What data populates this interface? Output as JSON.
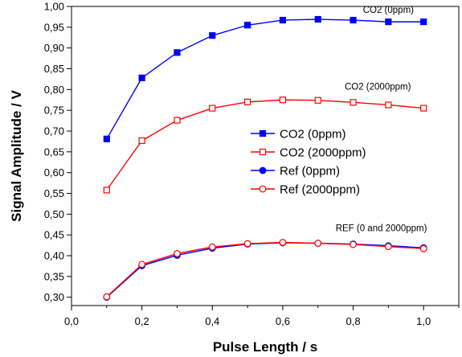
{
  "chart_data": {
    "type": "line",
    "xlabel": "Pulse Length / s",
    "ylabel": "Signal Amplitude / V",
    "xlim": [
      0.0,
      1.1
    ],
    "ylim": [
      0.28,
      1.0
    ],
    "xticks": [
      "0,0",
      "0,2",
      "0,4",
      "0,6",
      "0,8",
      "1,0"
    ],
    "xtick_values": [
      0.0,
      0.2,
      0.4,
      0.6,
      0.8,
      1.0
    ],
    "yticks": [
      "0,30",
      "0,35",
      "0,40",
      "0,45",
      "0,50",
      "0,55",
      "0,60",
      "0,65",
      "0,70",
      "0,75",
      "0,80",
      "0,85",
      "0,90",
      "0,95",
      "1,00"
    ],
    "ytick_values": [
      0.3,
      0.35,
      0.4,
      0.45,
      0.5,
      0.55,
      0.6,
      0.65,
      0.7,
      0.75,
      0.8,
      0.85,
      0.9,
      0.95,
      1.0
    ],
    "grid": false,
    "legend_position": "center-right",
    "series": [
      {
        "name": "CO2 (0ppm)",
        "color": "#0000ff",
        "marker": "square-filled",
        "x": [
          0.1,
          0.2,
          0.3,
          0.4,
          0.5,
          0.6,
          0.7,
          0.8,
          0.9,
          1.0
        ],
        "y": [
          0.681,
          0.828,
          0.889,
          0.93,
          0.955,
          0.967,
          0.969,
          0.967,
          0.963,
          0.963
        ]
      },
      {
        "name": "CO2 (2000ppm)",
        "color": "#ff0000",
        "marker": "square-open",
        "x": [
          0.1,
          0.2,
          0.3,
          0.4,
          0.5,
          0.6,
          0.7,
          0.8,
          0.9,
          1.0
        ],
        "y": [
          0.558,
          0.677,
          0.726,
          0.755,
          0.77,
          0.775,
          0.774,
          0.769,
          0.763,
          0.755
        ]
      },
      {
        "name": "Ref (0ppm)",
        "color": "#0000ff",
        "marker": "circle-filled",
        "x": [
          0.1,
          0.2,
          0.3,
          0.4,
          0.5,
          0.6,
          0.7,
          0.8,
          0.9,
          1.0
        ],
        "y": [
          0.3,
          0.376,
          0.401,
          0.418,
          0.428,
          0.431,
          0.43,
          0.428,
          0.424,
          0.419
        ]
      },
      {
        "name": "Ref (2000ppm)",
        "color": "#ff0000",
        "marker": "circle-open",
        "x": [
          0.1,
          0.2,
          0.3,
          0.4,
          0.5,
          0.6,
          0.7,
          0.8,
          0.9,
          1.0
        ],
        "y": [
          0.301,
          0.379,
          0.405,
          0.421,
          0.429,
          0.432,
          0.43,
          0.427,
          0.422,
          0.417
        ]
      }
    ],
    "annotations": [
      {
        "text": "CO2 (0ppm)",
        "x": 0.9,
        "y": 0.985
      },
      {
        "text": "CO2 (2000ppm)",
        "x": 0.87,
        "y": 0.8
      },
      {
        "text": "REF (0 and 2000ppm)",
        "x": 0.88,
        "y": 0.459
      }
    ]
  }
}
